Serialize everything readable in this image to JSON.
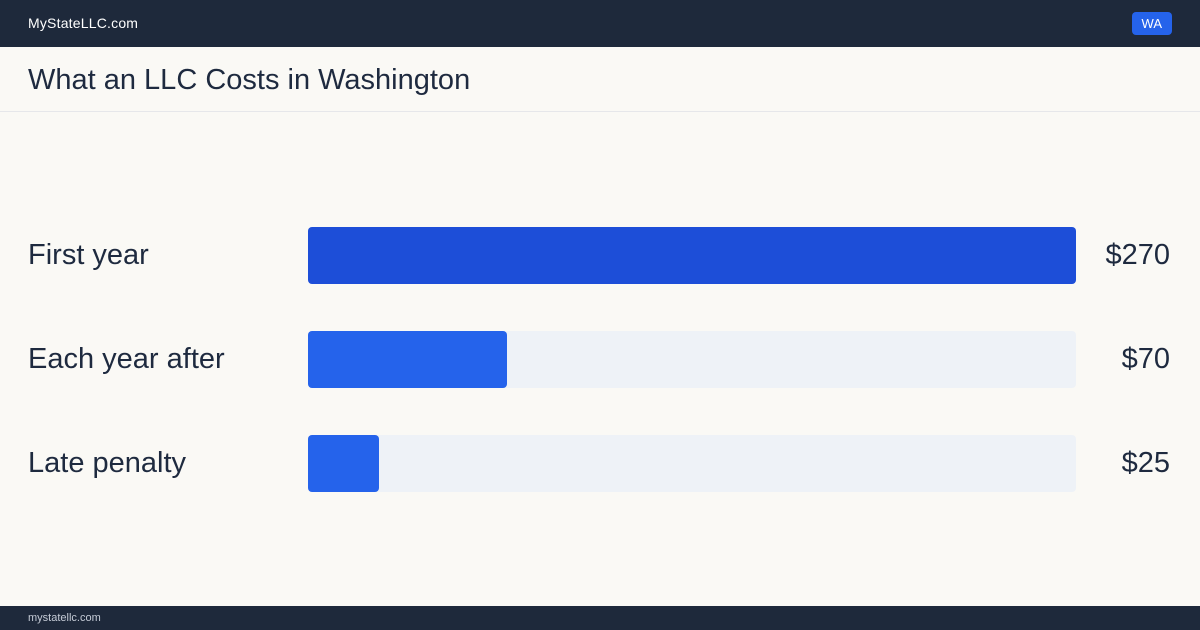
{
  "header": {
    "site_name": "MyStateLLC.com",
    "state_badge": "WA"
  },
  "page": {
    "title": "What an LLC Costs in Washington"
  },
  "footer": {
    "url": "mystatellc.com"
  },
  "colors": {
    "header_bg": "#1e293b",
    "badge_bg": "#2563eb",
    "bar_primary": "#1d4ed8",
    "bar_secondary": "#2563eb",
    "track": "#eef2f7"
  },
  "chart_data": {
    "type": "bar",
    "orientation": "horizontal",
    "categories": [
      "First year",
      "Each year after",
      "Late penalty"
    ],
    "values": [
      270,
      70,
      25
    ],
    "value_labels": [
      "$270",
      "$70",
      "$25"
    ],
    "xlim": [
      0,
      270
    ],
    "grid": false
  }
}
